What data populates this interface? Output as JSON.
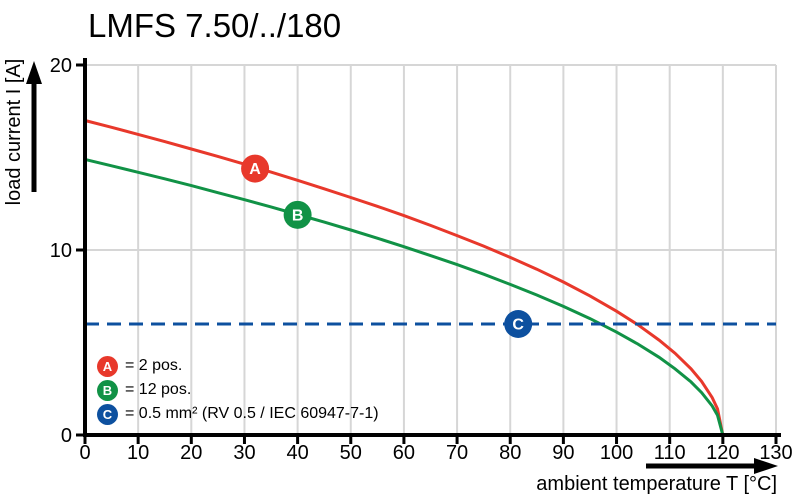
{
  "title": "LMFS 7.50/../180",
  "axes": {
    "y_label": "load current I [A]",
    "x_label": "ambient temperature T [°C]",
    "x_ticks": [
      0,
      10,
      20,
      30,
      40,
      50,
      60,
      70,
      80,
      90,
      100,
      110,
      120,
      130
    ],
    "y_ticks": [
      0,
      10,
      20
    ]
  },
  "legend": [
    {
      "id": "A",
      "color": "#e8382b",
      "label": "= 2 pos."
    },
    {
      "id": "B",
      "color": "#119246",
      "label": "= 12 pos."
    },
    {
      "id": "C",
      "color": "#0d509f",
      "label": "= 0.5 mm² (RV 0.5 / IEC 60947-7-1)"
    }
  ],
  "colors": {
    "curve_a": "#e8382b",
    "curve_b": "#119246",
    "limit_line": "#0d509f",
    "grid": "#d6d6d6",
    "axis": "#000000"
  },
  "chart_data": {
    "type": "line",
    "title": "LMFS 7.50/../180",
    "xlabel": "ambient temperature T [°C]",
    "ylabel": "load current I [A]",
    "xlim": [
      0,
      130
    ],
    "ylim": [
      0,
      20
    ],
    "grid": true,
    "series": [
      {
        "name": "A = 2 pos.",
        "color": "#e8382b",
        "style": "solid",
        "x": [
          0,
          5,
          10,
          15,
          20,
          25,
          30,
          35,
          40,
          45,
          50,
          55,
          60,
          65,
          70,
          75,
          80,
          85,
          90,
          95,
          100,
          104,
          108,
          111,
          114,
          116,
          118,
          119,
          120
        ],
        "y": [
          17.0,
          16.63,
          16.25,
          15.86,
          15.46,
          15.06,
          14.64,
          14.21,
          13.77,
          13.31,
          12.84,
          12.36,
          11.86,
          11.33,
          10.78,
          10.21,
          9.6,
          8.96,
          8.27,
          7.52,
          6.69,
          5.96,
          5.13,
          4.42,
          3.58,
          2.9,
          2.02,
          1.41,
          0
        ],
        "marker": {
          "label": "A",
          "x": 32,
          "y": 14.4
        }
      },
      {
        "name": "B = 12 pos.",
        "color": "#119246",
        "style": "solid",
        "x": [
          0,
          5,
          10,
          15,
          20,
          25,
          30,
          35,
          40,
          45,
          50,
          55,
          60,
          65,
          70,
          75,
          80,
          85,
          90,
          95,
          100,
          104,
          108,
          111,
          114,
          116,
          118,
          119,
          120
        ],
        "y": [
          14.9,
          14.55,
          14.2,
          13.85,
          13.48,
          13.1,
          12.72,
          12.33,
          11.92,
          11.51,
          11.08,
          10.64,
          10.18,
          9.7,
          9.21,
          8.69,
          8.14,
          7.57,
          6.95,
          6.29,
          5.56,
          4.92,
          4.2,
          3.58,
          2.87,
          2.29,
          1.57,
          1.07,
          0
        ],
        "marker": {
          "label": "B",
          "x": 40,
          "y": 11.9
        }
      },
      {
        "name": "C = 0.5 mm² (RV 0.5 / IEC 60947-7-1)",
        "color": "#0d509f",
        "style": "dashed",
        "x": [
          0,
          130
        ],
        "y": [
          6,
          6
        ],
        "marker": {
          "label": "C",
          "x": 81.5,
          "y": 6
        }
      }
    ]
  }
}
